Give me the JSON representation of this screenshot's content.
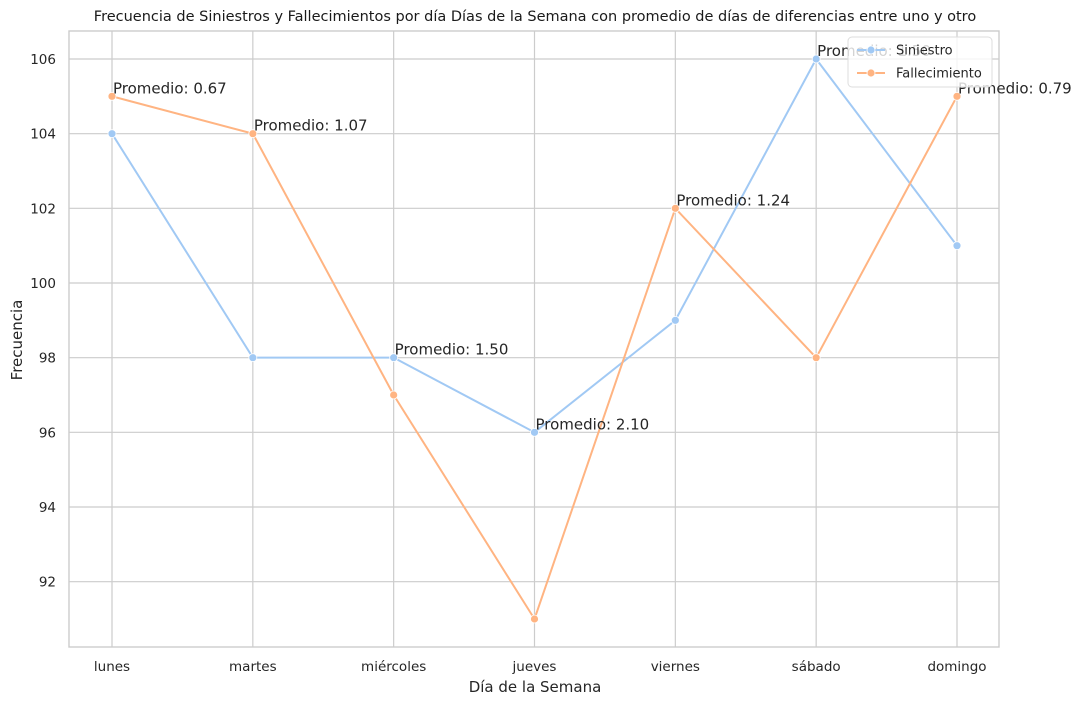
{
  "chart_data": {
    "type": "line",
    "title": "Frecuencia de Siniestros y Fallecimientos por día Días de la Semana con promedio de días de diferencias entre uno y otro",
    "xlabel": "Día de la Semana",
    "ylabel": "Frecuencia",
    "categories": [
      "lunes",
      "martes",
      "miércoles",
      "jueves",
      "viernes",
      "sábado",
      "domingo"
    ],
    "ylim": [
      90.25,
      106.75
    ],
    "yticks": [
      92,
      94,
      96,
      98,
      100,
      102,
      104,
      106
    ],
    "grid": true,
    "legend_position": "top-right",
    "series": [
      {
        "name": "Siniestro",
        "color": "#a1c9f4",
        "values": [
          104,
          98,
          98,
          96,
          99,
          106,
          101
        ]
      },
      {
        "name": "Fallecimiento",
        "color": "#ffb482",
        "values": [
          105,
          104,
          97,
          91,
          102,
          98,
          105
        ]
      }
    ],
    "annotations": [
      {
        "text": "Promedio: 0.67",
        "category": "lunes",
        "y": 105
      },
      {
        "text": "Promedio: 1.07",
        "category": "martes",
        "y": 104
      },
      {
        "text": "Promedio: 1.50",
        "category": "miércoles",
        "y": 98
      },
      {
        "text": "Promedio: 2.10",
        "category": "jueves",
        "y": 96
      },
      {
        "text": "Promedio: 1.24",
        "category": "viernes",
        "y": 102
      },
      {
        "text": "Promedio: 1.50",
        "category": "sábado",
        "y": 106
      },
      {
        "text": "Promedio: 0.79",
        "category": "domingo",
        "y": 105
      }
    ]
  }
}
